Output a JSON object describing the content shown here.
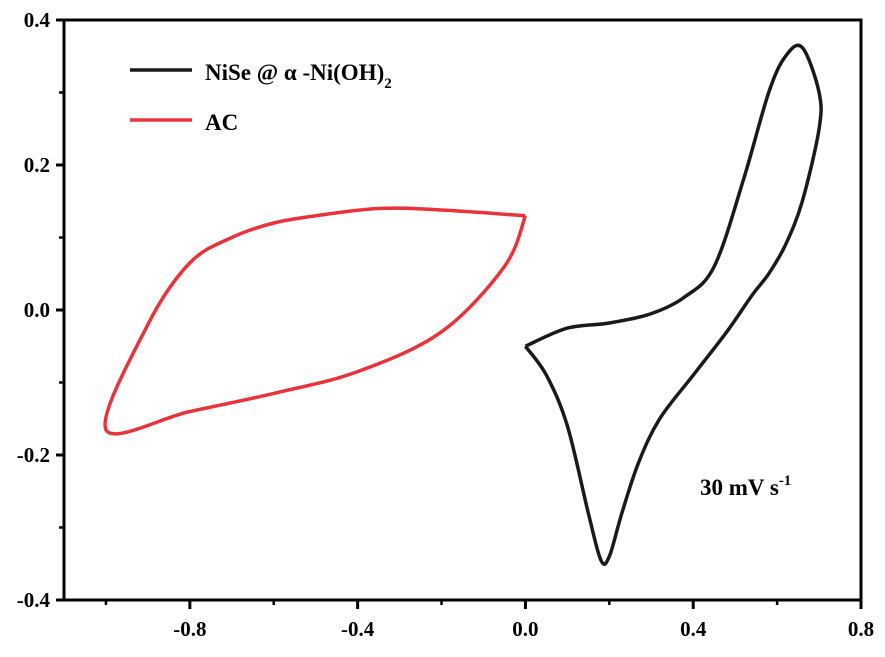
{
  "chart_data": {
    "type": "line",
    "title": "",
    "xlabel": "",
    "ylabel": "",
    "xlim": [
      -1.1,
      0.8
    ],
    "ylim": [
      -0.4,
      0.4
    ],
    "xticks": [
      -0.8,
      -0.4,
      0.0,
      0.4,
      0.8
    ],
    "xtick_labels": [
      "-0.8",
      "-0.4",
      "0.0",
      "0.4",
      "0.8"
    ],
    "yticks": [
      -0.4,
      -0.2,
      0.0,
      0.2,
      0.4
    ],
    "ytick_labels": [
      "-0.4",
      "-0.2",
      "0.0",
      "0.2",
      "0.4"
    ],
    "grid": false,
    "legend_position": "top-left",
    "annotation": {
      "text": "30 mV s",
      "superscript": "-1"
    },
    "series": [
      {
        "name": "NiSe @ α -Ni(OH)",
        "name_subscript": "2",
        "color": "#1a1a1a",
        "x": [
          0.0,
          0.1,
          0.2,
          0.3,
          0.38,
          0.45,
          0.52,
          0.58,
          0.62,
          0.66,
          0.7,
          0.7,
          0.66,
          0.62,
          0.58,
          0.54,
          0.48,
          0.4,
          0.32,
          0.27,
          0.23,
          0.2,
          0.18,
          0.15,
          0.1,
          0.05,
          0.0
        ],
        "y": [
          -0.05,
          -0.025,
          -0.018,
          -0.005,
          0.018,
          0.06,
          0.18,
          0.3,
          0.35,
          0.362,
          0.3,
          0.25,
          0.15,
          0.09,
          0.05,
          0.02,
          -0.03,
          -0.09,
          -0.15,
          -0.21,
          -0.28,
          -0.34,
          -0.345,
          -0.28,
          -0.16,
          -0.09,
          -0.05
        ]
      },
      {
        "name": "AC",
        "color": "#e8333a",
        "x": [
          0.0,
          -0.2,
          -0.35,
          -0.5,
          -0.6,
          -0.7,
          -0.8,
          -0.9,
          -1.0,
          -0.8,
          -0.6,
          -0.4,
          -0.2,
          -0.05,
          0.0
        ],
        "y": [
          0.13,
          0.138,
          0.14,
          0.13,
          0.12,
          0.1,
          0.065,
          -0.02,
          -0.165,
          -0.14,
          -0.115,
          -0.085,
          -0.03,
          0.06,
          0.13
        ]
      }
    ]
  }
}
